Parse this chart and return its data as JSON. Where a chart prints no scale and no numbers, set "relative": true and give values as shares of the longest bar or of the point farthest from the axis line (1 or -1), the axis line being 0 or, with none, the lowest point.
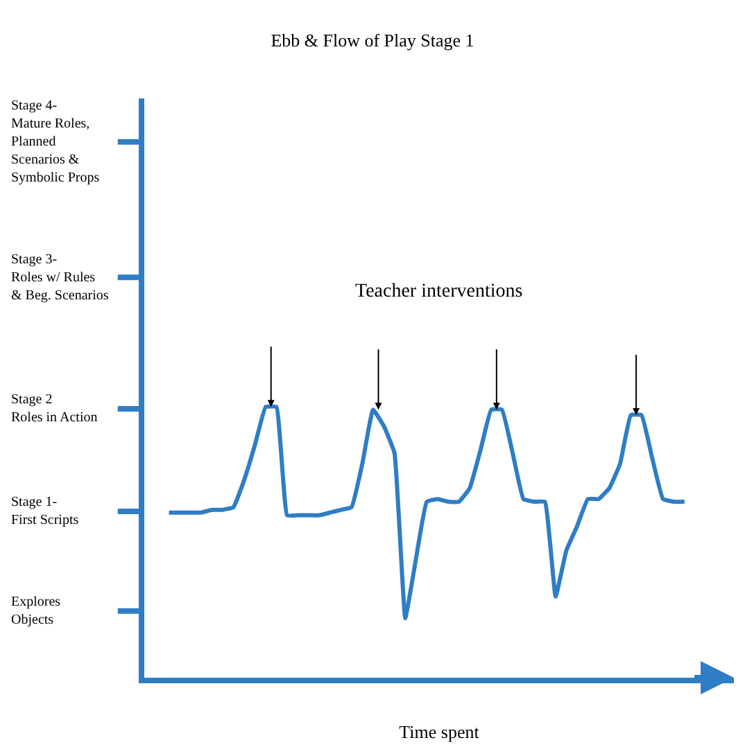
{
  "chart_data": {
    "type": "line",
    "title": "Ebb & Flow of Play Stage 1",
    "xlabel": "Time spent",
    "relative": true,
    "annotations": [
      "Teacher interventions",
      "Explores\nObjects",
      "Stage 1-\nFirst Scripts",
      "Stage 2\nRoles in Action",
      "Stage 3-\nRoles w/ Rules\n& Beg. Scenarios",
      "Stage 4-\nMature Roles,\nPlanned\nScenarios &\nSymbolic Props"
    ],
    "categories": [
      null,
      null,
      null,
      null,
      null,
      null,
      null,
      null,
      null,
      null,
      null,
      null,
      null,
      null,
      null,
      null,
      null,
      null,
      null,
      null,
      null,
      null,
      null,
      null,
      null,
      null,
      null,
      null,
      null,
      null,
      null,
      null,
      null,
      null,
      null,
      null,
      null,
      null,
      null,
      null,
      null,
      null,
      null,
      null,
      null,
      null,
      null,
      null,
      null
    ],
    "series": [
      {
        "color": "#2f7dc4",
        "values": [
          0.61,
          0.61,
          0.61,
          0.61,
          0.62,
          0.62,
          0.63,
          0.73,
          0.86,
          1.0,
          1.0,
          0.6,
          0.6,
          0.6,
          0.6,
          0.61,
          0.62,
          0.63,
          0.79,
          0.99,
          0.93,
          0.83,
          0.22,
          0.44,
          0.65,
          0.66,
          0.65,
          0.65,
          0.7,
          0.84,
          0.99,
          0.99,
          0.83,
          0.66,
          0.65,
          0.65,
          0.3,
          0.47,
          0.56,
          0.66,
          0.66,
          0.7,
          0.79,
          0.97,
          0.97,
          0.81,
          0.66,
          0.65,
          0.65
        ]
      }
    ],
    "marker": "none",
    "line_style": "solid"
  }
}
